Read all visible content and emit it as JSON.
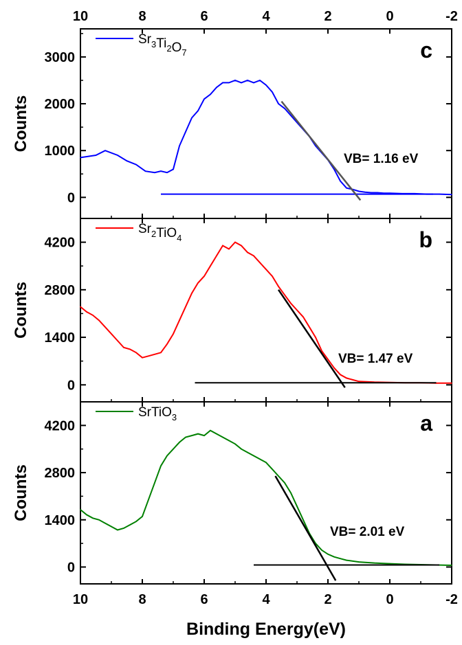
{
  "chart_data": [
    {
      "type": "line",
      "panel_letter": "c",
      "ylabel": "Counts",
      "ylim": [
        -450,
        3600
      ],
      "yticks": [
        0,
        1000,
        2000,
        3000
      ],
      "xlim": [
        10,
        -2
      ],
      "color": "#0000ff",
      "series": [
        {
          "name": "Sr3Ti2O7",
          "x": [
            10.0,
            9.5,
            9.2,
            8.8,
            8.5,
            8.2,
            7.9,
            7.6,
            7.4,
            7.2,
            7.0,
            6.8,
            6.6,
            6.4,
            6.2,
            6.0,
            5.8,
            5.6,
            5.4,
            5.2,
            5.0,
            4.8,
            4.6,
            4.4,
            4.2,
            4.0,
            3.8,
            3.6,
            3.4,
            3.2,
            3.0,
            2.8,
            2.6,
            2.4,
            2.2,
            2.0,
            1.8,
            1.6,
            1.4,
            1.2,
            1.0,
            0.8,
            0.6,
            0.4,
            0.2,
            0.0,
            -0.4,
            -0.8,
            -1.2,
            -1.6,
            -2.0
          ],
          "values": [
            850,
            900,
            1000,
            900,
            780,
            700,
            560,
            530,
            560,
            530,
            600,
            1100,
            1400,
            1700,
            1850,
            2100,
            2200,
            2350,
            2450,
            2450,
            2500,
            2450,
            2500,
            2450,
            2500,
            2400,
            2250,
            2000,
            1900,
            1750,
            1600,
            1450,
            1300,
            1100,
            950,
            800,
            600,
            350,
            200,
            170,
            130,
            110,
            100,
            100,
            90,
            90,
            80,
            80,
            70,
            70,
            60
          ]
        }
      ],
      "baseline": {
        "x": [
          7.4,
          -1.4
        ],
        "y": [
          70,
          70
        ]
      },
      "tangent": {
        "x": [
          3.5,
          0.95
        ],
        "y": [
          2050,
          -60
        ]
      },
      "annotation": "VB= 1.16 eV"
    },
    {
      "type": "line",
      "panel_letter": "b",
      "ylabel": "Counts",
      "ylim": [
        -500,
        4900
      ],
      "yticks": [
        0,
        1400,
        2800,
        4200
      ],
      "xlim": [
        10,
        -2
      ],
      "color": "#ff0000",
      "series": [
        {
          "name": "Sr2TiO4",
          "x": [
            10.0,
            9.8,
            9.6,
            9.4,
            9.2,
            9.0,
            8.8,
            8.6,
            8.4,
            8.2,
            8.0,
            7.8,
            7.6,
            7.4,
            7.2,
            7.0,
            6.8,
            6.6,
            6.4,
            6.2,
            6.0,
            5.8,
            5.6,
            5.4,
            5.2,
            5.0,
            4.8,
            4.6,
            4.4,
            4.2,
            4.0,
            3.8,
            3.6,
            3.4,
            3.2,
            3.0,
            2.8,
            2.6,
            2.4,
            2.2,
            2.0,
            1.8,
            1.6,
            1.4,
            1.2,
            1.0,
            0.5,
            0.0,
            -0.5,
            -1.0,
            -1.5,
            -2.0
          ],
          "values": [
            2300,
            2150,
            2050,
            1900,
            1700,
            1500,
            1300,
            1100,
            1050,
            950,
            800,
            850,
            900,
            950,
            1200,
            1500,
            1900,
            2300,
            2700,
            3000,
            3200,
            3500,
            3800,
            4100,
            4000,
            4200,
            4100,
            3900,
            3800,
            3600,
            3400,
            3200,
            2900,
            2650,
            2400,
            2200,
            2000,
            1700,
            1400,
            1000,
            750,
            500,
            300,
            200,
            150,
            100,
            80,
            70,
            60,
            60,
            50,
            50
          ]
        }
      ],
      "baseline": {
        "x": [
          6.3,
          -1.5
        ],
        "y": [
          60,
          60
        ]
      },
      "tangent": {
        "x": [
          3.6,
          1.45
        ],
        "y": [
          2800,
          -80
        ]
      },
      "annotation": "VB= 1.47 eV"
    },
    {
      "type": "line",
      "panel_letter": "a",
      "ylabel": "Counts",
      "ylim": [
        -500,
        4900
      ],
      "yticks": [
        0,
        1400,
        2800,
        4200
      ],
      "xlim": [
        10,
        -2
      ],
      "color": "#008000",
      "series": [
        {
          "name": "SrTiO3",
          "x": [
            10.0,
            9.8,
            9.6,
            9.4,
            9.2,
            9.0,
            8.8,
            8.6,
            8.4,
            8.2,
            8.0,
            7.8,
            7.6,
            7.4,
            7.2,
            7.0,
            6.8,
            6.6,
            6.4,
            6.2,
            6.0,
            5.8,
            5.6,
            5.4,
            5.2,
            5.0,
            4.8,
            4.6,
            4.4,
            4.2,
            4.0,
            3.8,
            3.6,
            3.4,
            3.2,
            3.0,
            2.8,
            2.6,
            2.4,
            2.2,
            2.0,
            1.8,
            1.6,
            1.4,
            1.0,
            0.5,
            0.0,
            -0.5,
            -1.0,
            -1.5,
            -2.0
          ],
          "values": [
            1700,
            1550,
            1450,
            1400,
            1300,
            1200,
            1100,
            1150,
            1250,
            1350,
            1500,
            2000,
            2500,
            3000,
            3300,
            3500,
            3700,
            3850,
            3900,
            3950,
            3900,
            4050,
            3950,
            3850,
            3750,
            3650,
            3500,
            3400,
            3300,
            3200,
            3100,
            2900,
            2700,
            2500,
            2200,
            1800,
            1400,
            1000,
            700,
            500,
            380,
            300,
            250,
            200,
            150,
            120,
            100,
            80,
            70,
            60,
            50
          ]
        }
      ],
      "baseline": {
        "x": [
          4.4,
          -1.6
        ],
        "y": [
          60,
          60
        ]
      },
      "tangent": {
        "x": [
          3.7,
          1.75
        ],
        "y": [
          2700,
          -400
        ]
      },
      "annotation": "VB= 2.01 eV"
    }
  ],
  "xaxis": {
    "label": "Binding Energy(eV)",
    "ticks": [
      10,
      8,
      6,
      4,
      2,
      0,
      -2
    ]
  },
  "legend_labels": {
    "c": {
      "base": [
        "Sr",
        "Ti",
        "O"
      ],
      "subs": [
        "3",
        "2",
        "7"
      ]
    },
    "b": {
      "base": [
        "Sr",
        "TiO"
      ],
      "subs": [
        "2",
        "4"
      ]
    },
    "a": {
      "base": [
        "SrTiO"
      ],
      "subs": [
        "3"
      ]
    }
  }
}
